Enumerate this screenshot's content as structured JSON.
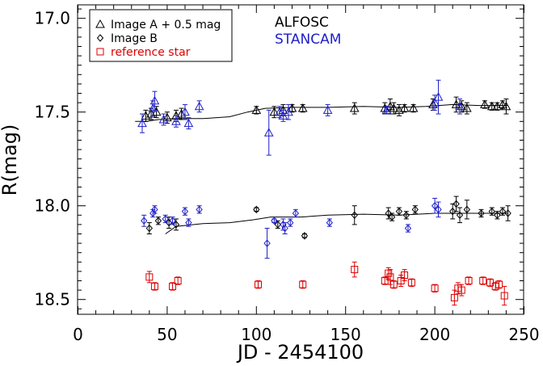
{
  "chart_data": {
    "type": "scatter",
    "xlabel": "JD - 2454100",
    "ylabel": "R(mag)",
    "xlim": [
      0,
      250
    ],
    "ylim": [
      18.6,
      16.95
    ],
    "y_inverted": true,
    "x_ticks": [
      0,
      50,
      100,
      150,
      200,
      250
    ],
    "x_tick_labels": [
      "0",
      "50",
      "100",
      "150",
      "200",
      "250"
    ],
    "y_ticks": [
      17.0,
      17.5,
      18.0,
      18.5
    ],
    "y_tick_labels": [
      "17.0",
      "17.5",
      "18.0",
      "18.5"
    ],
    "legend": {
      "placement": "top-left",
      "entries": [
        {
          "marker": "triangle",
          "label": "Image A + 0.5 mag",
          "color": "#000000"
        },
        {
          "marker": "diamond",
          "label": "Image B",
          "color": "#000000"
        },
        {
          "marker": "square",
          "label": "reference star",
          "color": "#dd0000"
        }
      ],
      "instruments": [
        {
          "label": "ALFOSC",
          "color": "#000000"
        },
        {
          "label": "STANCAM",
          "color": "#1f1fc8"
        }
      ]
    },
    "colors": {
      "alfosc": "#000000",
      "stancam": "#1f1fc8",
      "reference": "#dd0000"
    },
    "series": [
      {
        "name": "Image A + 0.5 mag",
        "marker": "triangle",
        "instrument": "ALFOSC",
        "points": [
          [
            38,
            17.52,
            0.03
          ],
          [
            41,
            17.51,
            0.03
          ],
          [
            44,
            17.5,
            0.03
          ],
          [
            50,
            17.53,
            0.03
          ],
          [
            55,
            17.52,
            0.03
          ],
          [
            58,
            17.51,
            0.03
          ],
          [
            100,
            17.49,
            0.02
          ],
          [
            110,
            17.5,
            0.03
          ],
          [
            115,
            17.49,
            0.03
          ],
          [
            120,
            17.48,
            0.02
          ],
          [
            126,
            17.48,
            0.02
          ],
          [
            155,
            17.48,
            0.03
          ],
          [
            172,
            17.48,
            0.03
          ],
          [
            175,
            17.47,
            0.04
          ],
          [
            177,
            17.48,
            0.03
          ],
          [
            180,
            17.49,
            0.03
          ],
          [
            183,
            17.48,
            0.02
          ],
          [
            188,
            17.48,
            0.02
          ],
          [
            199,
            17.46,
            0.03
          ],
          [
            212,
            17.46,
            0.04
          ],
          [
            215,
            17.47,
            0.03
          ],
          [
            218,
            17.48,
            0.03
          ],
          [
            228,
            17.46,
            0.02
          ],
          [
            232,
            17.47,
            0.02
          ],
          [
            235,
            17.47,
            0.02
          ],
          [
            238,
            17.46,
            0.02
          ],
          [
            240,
            17.47,
            0.04
          ]
        ]
      },
      {
        "name": "Image A + 0.5 mag",
        "marker": "triangle",
        "instrument": "STANCAM",
        "points": [
          [
            36,
            17.56,
            0.05
          ],
          [
            42,
            17.48,
            0.04
          ],
          [
            43,
            17.44,
            0.05
          ],
          [
            48,
            17.54,
            0.03
          ],
          [
            55,
            17.55,
            0.03
          ],
          [
            60,
            17.5,
            0.04
          ],
          [
            62,
            17.56,
            0.03
          ],
          [
            68,
            17.47,
            0.03
          ],
          [
            107,
            17.61,
            0.12
          ],
          [
            113,
            17.5,
            0.03
          ],
          [
            115,
            17.52,
            0.03
          ],
          [
            118,
            17.5,
            0.04
          ],
          [
            140,
            17.49,
            0.03
          ],
          [
            173,
            17.49,
            0.02
          ],
          [
            200,
            17.45,
            0.04
          ],
          [
            202,
            17.42,
            0.09
          ],
          [
            214,
            17.47,
            0.04
          ]
        ]
      },
      {
        "name": "Image B",
        "marker": "diamond",
        "instrument": "ALFOSC",
        "points": [
          [
            40,
            18.12,
            0.03
          ],
          [
            45,
            18.08,
            0.02
          ],
          [
            51,
            18.09,
            0.03
          ],
          [
            55,
            18.1,
            0.03
          ],
          [
            100,
            18.02,
            0.01
          ],
          [
            112,
            18.1,
            0.02
          ],
          [
            127,
            18.16,
            0.01
          ],
          [
            155,
            18.05,
            0.05
          ],
          [
            174,
            18.04,
            0.03
          ],
          [
            176,
            18.06,
            0.02
          ],
          [
            180,
            18.03,
            0.02
          ],
          [
            184,
            18.05,
            0.02
          ],
          [
            189,
            18.02,
            0.02
          ],
          [
            210,
            18.03,
            0.04
          ],
          [
            212,
            17.99,
            0.04
          ],
          [
            214,
            18.05,
            0.04
          ],
          [
            218,
            18.02,
            0.05
          ],
          [
            226,
            18.04,
            0.02
          ],
          [
            232,
            18.03,
            0.02
          ],
          [
            235,
            18.05,
            0.02
          ],
          [
            238,
            18.03,
            0.02
          ],
          [
            241,
            18.04,
            0.04
          ]
        ]
      },
      {
        "name": "Image B",
        "marker": "diamond",
        "instrument": "STANCAM",
        "points": [
          [
            37,
            18.08,
            0.03
          ],
          [
            42,
            18.04,
            0.02
          ],
          [
            43,
            18.02,
            0.02
          ],
          [
            49,
            18.07,
            0.02
          ],
          [
            53,
            18.08,
            0.02
          ],
          [
            60,
            18.03,
            0.02
          ],
          [
            62,
            18.09,
            0.02
          ],
          [
            68,
            18.02,
            0.02
          ],
          [
            106,
            18.2,
            0.08
          ],
          [
            110,
            18.08,
            0.01
          ],
          [
            115,
            18.1,
            0.03
          ],
          [
            116,
            18.12,
            0.03
          ],
          [
            119,
            18.09,
            0.02
          ],
          [
            122,
            18.04,
            0.02
          ],
          [
            141,
            18.09,
            0.02
          ],
          [
            185,
            18.12,
            0.02
          ],
          [
            200,
            18.0,
            0.04
          ],
          [
            202,
            18.02,
            0.04
          ]
        ]
      },
      {
        "name": "reference star",
        "marker": "square",
        "instrument": "reference",
        "points": [
          [
            40,
            18.38,
            0.03
          ],
          [
            43,
            18.43,
            0.02
          ],
          [
            53,
            18.43,
            0.02
          ],
          [
            56,
            18.4,
            0.02
          ],
          [
            101,
            18.42,
            0.02
          ],
          [
            126,
            18.42,
            0.02
          ],
          [
            155,
            18.34,
            0.04
          ],
          [
            172,
            18.4,
            0.02
          ],
          [
            174,
            18.36,
            0.03
          ],
          [
            175,
            18.38,
            0.04
          ],
          [
            177,
            18.42,
            0.02
          ],
          [
            181,
            18.4,
            0.03
          ],
          [
            183,
            18.37,
            0.03
          ],
          [
            187,
            18.41,
            0.02
          ],
          [
            200,
            18.44,
            0.02
          ],
          [
            211,
            18.49,
            0.04
          ],
          [
            213,
            18.44,
            0.03
          ],
          [
            215,
            18.45,
            0.03
          ],
          [
            219,
            18.4,
            0.02
          ],
          [
            227,
            18.4,
            0.02
          ],
          [
            231,
            18.41,
            0.02
          ],
          [
            234,
            18.43,
            0.02
          ],
          [
            236,
            18.42,
            0.02
          ],
          [
            239,
            18.48,
            0.05
          ]
        ]
      }
    ],
    "model_curves": [
      {
        "instrument": "ALFOSC",
        "color": "#000000",
        "points": [
          [
            32,
            17.55
          ],
          [
            38,
            17.55
          ],
          [
            45,
            17.54
          ],
          [
            55,
            17.535
          ],
          [
            70,
            17.535
          ],
          [
            85,
            17.525
          ],
          [
            95,
            17.5
          ],
          [
            105,
            17.48
          ],
          [
            120,
            17.475
          ],
          [
            140,
            17.475
          ],
          [
            160,
            17.47
          ],
          [
            180,
            17.475
          ],
          [
            195,
            17.47
          ],
          [
            210,
            17.46
          ],
          [
            225,
            17.465
          ],
          [
            241,
            17.465
          ]
        ]
      },
      {
        "instrument": "ALFOSC",
        "color": "#000000",
        "points": [
          [
            49,
            18.15
          ],
          [
            55,
            18.11
          ],
          [
            70,
            18.095
          ],
          [
            85,
            18.09
          ],
          [
            98,
            18.075
          ],
          [
            108,
            18.06
          ],
          [
            125,
            18.06
          ],
          [
            140,
            18.05
          ],
          [
            160,
            18.045
          ],
          [
            180,
            18.05
          ],
          [
            200,
            18.04
          ],
          [
            220,
            18.04
          ],
          [
            241,
            18.04
          ]
        ]
      }
    ]
  }
}
